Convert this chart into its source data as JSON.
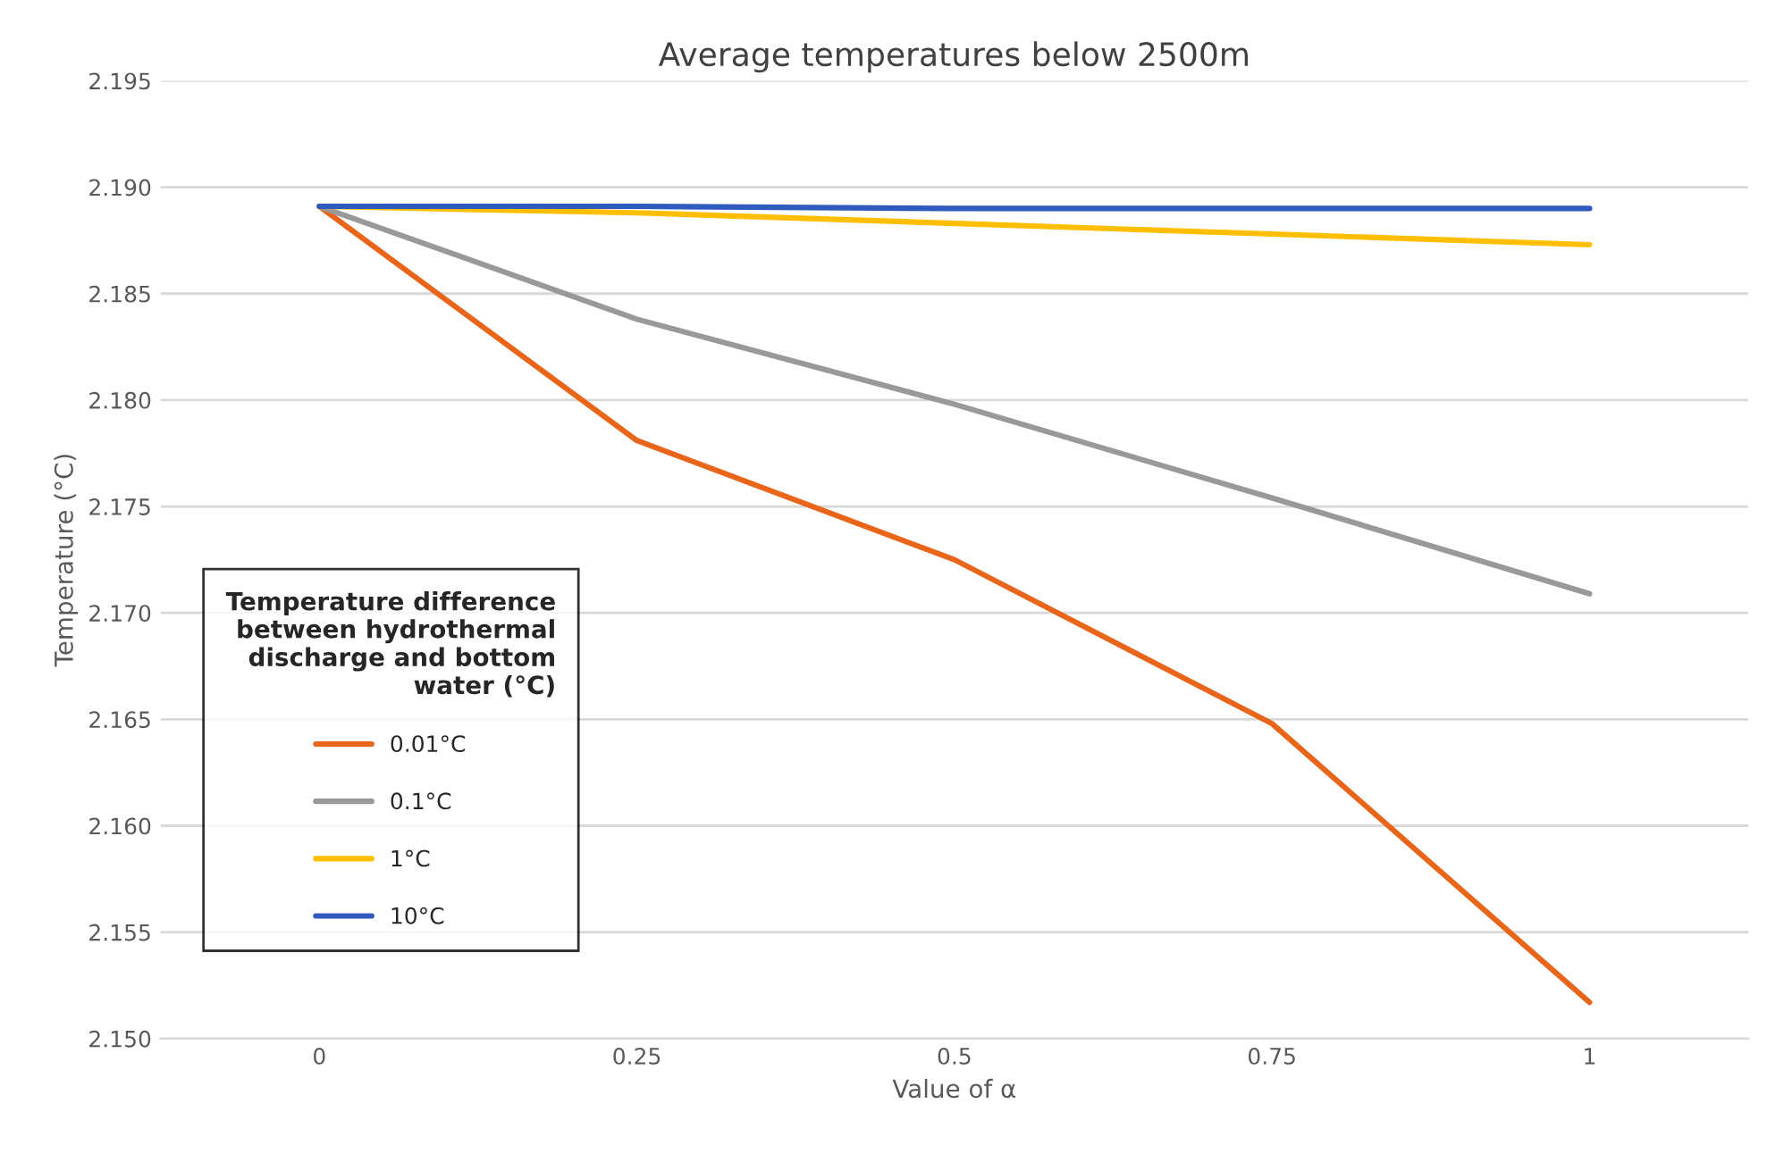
{
  "chart_data": {
    "type": "line",
    "title": "Average temperatures below 2500m",
    "xlabel": "Value of α",
    "ylabel": "Temperature (°C)",
    "legend_title": "Temperature difference\nbetween hydrothermal\ndischarge and bottom\nwater (°C)",
    "categories": [
      "0",
      "0.25",
      "0.5",
      "0.75",
      "1"
    ],
    "series": [
      {
        "name": "0.01°C",
        "color": "#e8651a",
        "values": [
          2.1891,
          2.1781,
          2.1725,
          2.1648,
          2.1517
        ]
      },
      {
        "name": "0.1°C",
        "color": "#999999",
        "values": [
          2.1891,
          2.1838,
          2.1798,
          2.1754,
          2.1709
        ]
      },
      {
        "name": "1°C",
        "color": "#ffbf00",
        "values": [
          2.1891,
          2.1888,
          2.1883,
          2.1878,
          2.1873
        ]
      },
      {
        "name": "10°C",
        "color": "#2f5bbf",
        "values": [
          2.1891,
          2.1891,
          2.189,
          2.189,
          2.189
        ]
      }
    ],
    "ylim": [
      2.15,
      2.195
    ],
    "yticks": [
      {
        "value": 2.15,
        "label": "2.150"
      },
      {
        "value": 2.155,
        "label": "2.155"
      },
      {
        "value": 2.16,
        "label": "2.160"
      },
      {
        "value": 2.165,
        "label": "2.165"
      },
      {
        "value": 2.17,
        "label": "2.170"
      },
      {
        "value": 2.175,
        "label": "2.175"
      },
      {
        "value": 2.18,
        "label": "2.180"
      },
      {
        "value": 2.185,
        "label": "2.185"
      },
      {
        "value": 2.19,
        "label": "2.190"
      },
      {
        "value": 2.195,
        "label": "2.195"
      }
    ],
    "grid": "y",
    "legend": "bottom left",
    "marker": "none",
    "line_style": "solid"
  }
}
